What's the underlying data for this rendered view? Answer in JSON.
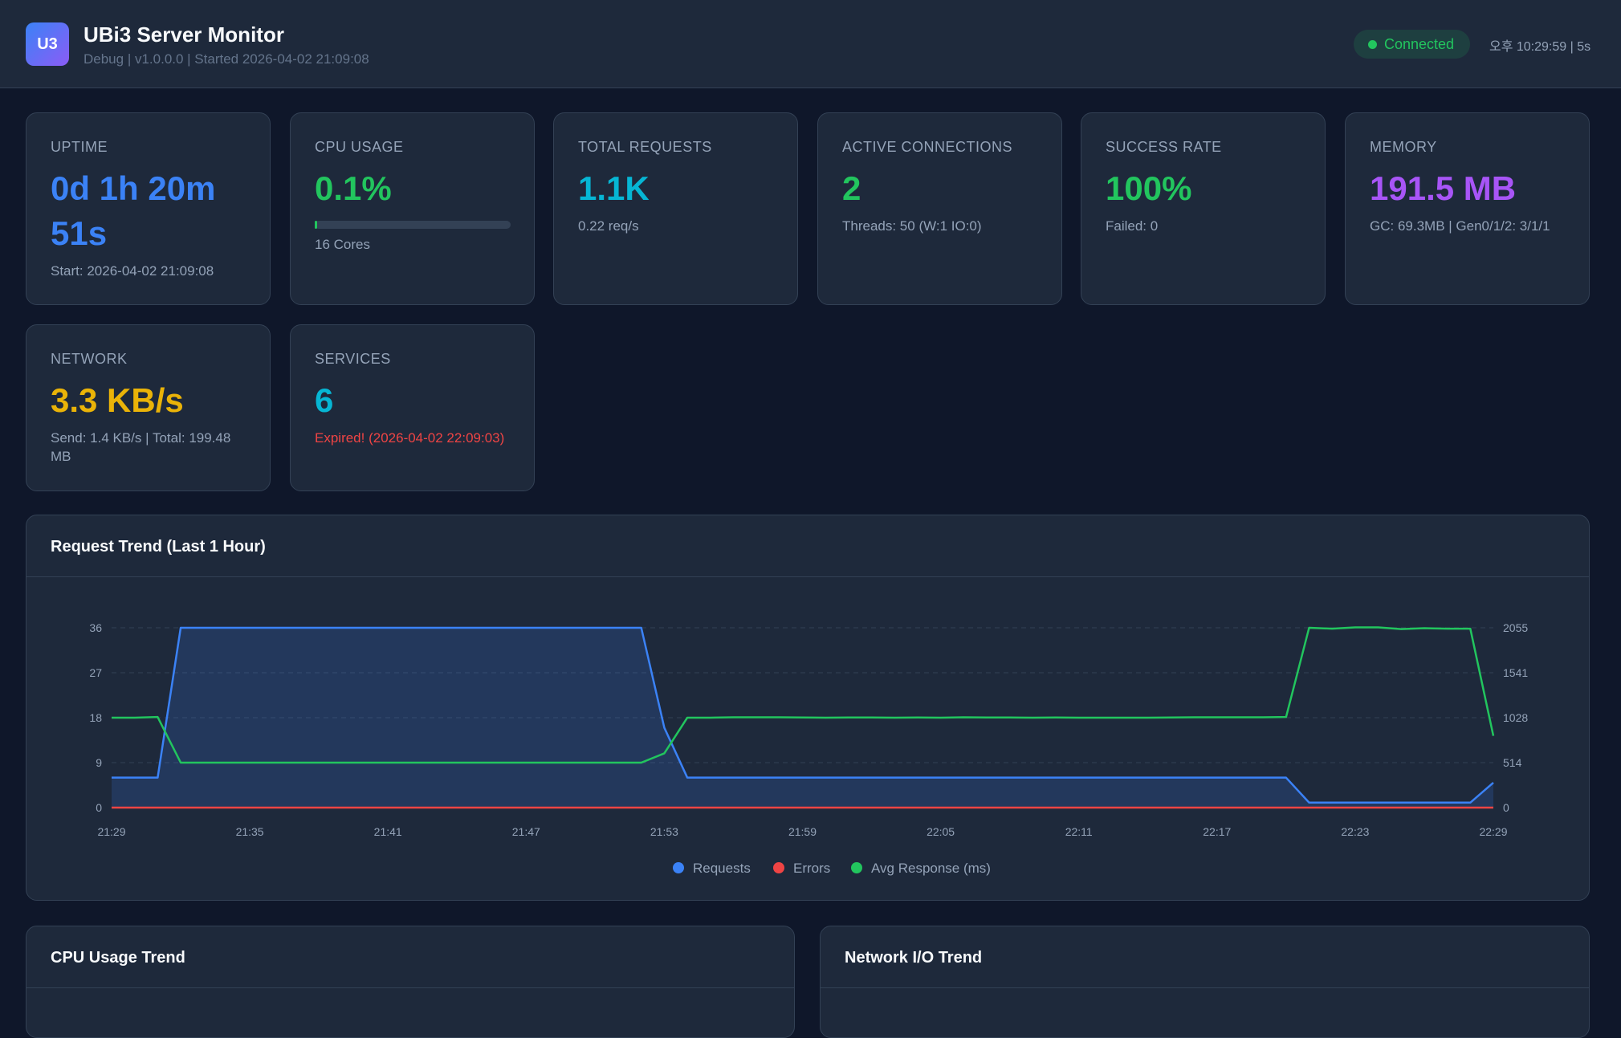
{
  "header": {
    "logo_text": "U3",
    "title": "UBi3 Server Monitor",
    "subtitle": "Debug | v1.0.0.0 | Started 2026-04-02 21:09:08",
    "status": "Connected",
    "clock": "오후 10:29:59 | 5s"
  },
  "cards": {
    "uptime": {
      "label": "UPTIME",
      "value_line1": "0d 1h 20m",
      "value_line2": "51s",
      "sub": "Start: 2026-04-02 21:09:08"
    },
    "cpu": {
      "label": "CPU USAGE",
      "value": "0.1%",
      "percent": 0.1,
      "sub": "16 Cores"
    },
    "requests": {
      "label": "TOTAL REQUESTS",
      "value": "1.1K",
      "sub": "0.22 req/s"
    },
    "connections": {
      "label": "ACTIVE CONNECTIONS",
      "value": "2",
      "sub": "Threads: 50 (W:1 IO:0)"
    },
    "success": {
      "label": "SUCCESS RATE",
      "value": "100%",
      "sub": "Failed: 0"
    },
    "memory": {
      "label": "MEMORY",
      "value": "191.5 MB",
      "sub": "GC: 69.3MB | Gen0/1/2: 3/1/1"
    },
    "network": {
      "label": "NETWORK",
      "value": "3.3 KB/s",
      "sub_line1": "Send: 1.4 KB/s | Total: 199.48",
      "sub_line2": "MB"
    },
    "services": {
      "label": "SERVICES",
      "value": "6",
      "sub": "Expired! (2026-04-02 22:09:03)"
    }
  },
  "panels": {
    "request_trend_title": "Request Trend (Last 1 Hour)",
    "cpu_trend_title": "CPU Usage Trend",
    "network_trend_title": "Network I/O Trend"
  },
  "colors": {
    "requests": "#3b82f6",
    "errors": "#ef4444",
    "avg_response": "#22c55e"
  },
  "chart_data": {
    "type": "line",
    "title": "Request Trend (Last 1 Hour)",
    "x": [
      "21:29",
      "21:30",
      "21:31",
      "21:32",
      "21:33",
      "21:34",
      "21:35",
      "21:36",
      "21:37",
      "21:38",
      "21:39",
      "21:40",
      "21:41",
      "21:42",
      "21:43",
      "21:44",
      "21:45",
      "21:46",
      "21:47",
      "21:48",
      "21:49",
      "21:50",
      "21:51",
      "21:52",
      "21:53",
      "21:54",
      "21:55",
      "21:56",
      "21:57",
      "21:58",
      "21:59",
      "22:00",
      "22:01",
      "22:02",
      "22:03",
      "22:04",
      "22:05",
      "22:06",
      "22:07",
      "22:08",
      "22:09",
      "22:10",
      "22:11",
      "22:12",
      "22:13",
      "22:14",
      "22:15",
      "22:16",
      "22:17",
      "22:18",
      "22:19",
      "22:20",
      "22:21",
      "22:22",
      "22:23",
      "22:24",
      "22:25",
      "22:26",
      "22:27",
      "22:28",
      "22:29"
    ],
    "x_ticks": [
      "21:29",
      "21:35",
      "21:41",
      "21:47",
      "21:53",
      "21:59",
      "22:05",
      "22:11",
      "22:17",
      "22:23",
      "22:29"
    ],
    "y_left_ticks": [
      "0",
      "9",
      "18",
      "27",
      "36"
    ],
    "y_right_ticks": [
      "0",
      "514",
      "1028",
      "1541",
      "2055"
    ],
    "ylim_left": [
      0,
      36
    ],
    "ylim_right": [
      0,
      2055
    ],
    "series": [
      {
        "name": "Requests",
        "axis": "left",
        "values": [
          6,
          6,
          6,
          36,
          36,
          36,
          36,
          36,
          36,
          36,
          36,
          36,
          36,
          36,
          36,
          36,
          36,
          36,
          36,
          36,
          36,
          36,
          36,
          36,
          16,
          6,
          6,
          6,
          6,
          6,
          6,
          6,
          6,
          6,
          6,
          6,
          6,
          6,
          6,
          6,
          6,
          6,
          6,
          6,
          6,
          6,
          6,
          6,
          6,
          6,
          6,
          6,
          1,
          1,
          1,
          1,
          1,
          1,
          1,
          1,
          5
        ]
      },
      {
        "name": "Errors",
        "axis": "left",
        "values": [
          0,
          0,
          0,
          0,
          0,
          0,
          0,
          0,
          0,
          0,
          0,
          0,
          0,
          0,
          0,
          0,
          0,
          0,
          0,
          0,
          0,
          0,
          0,
          0,
          0,
          0,
          0,
          0,
          0,
          0,
          0,
          0,
          0,
          0,
          0,
          0,
          0,
          0,
          0,
          0,
          0,
          0,
          0,
          0,
          0,
          0,
          0,
          0,
          0,
          0,
          0,
          0,
          0,
          0,
          0,
          0,
          0,
          0,
          0,
          0,
          0
        ]
      },
      {
        "name": "Avg Response (ms)",
        "axis": "right",
        "values": [
          1028,
          1028,
          1035,
          514,
          514,
          514,
          514,
          514,
          514,
          514,
          514,
          514,
          514,
          514,
          514,
          514,
          514,
          514,
          514,
          514,
          514,
          514,
          514,
          514,
          620,
          1028,
          1028,
          1032,
          1032,
          1032,
          1030,
          1028,
          1030,
          1030,
          1028,
          1030,
          1028,
          1032,
          1030,
          1030,
          1028,
          1030,
          1028,
          1028,
          1028,
          1028,
          1030,
          1032,
          1032,
          1032,
          1032,
          1035,
          2055,
          2045,
          2060,
          2060,
          2040,
          2050,
          2045,
          2045,
          820
        ]
      }
    ],
    "legend": [
      "Requests",
      "Errors",
      "Avg Response (ms)"
    ],
    "legend_position": "bottom",
    "grid": true
  }
}
